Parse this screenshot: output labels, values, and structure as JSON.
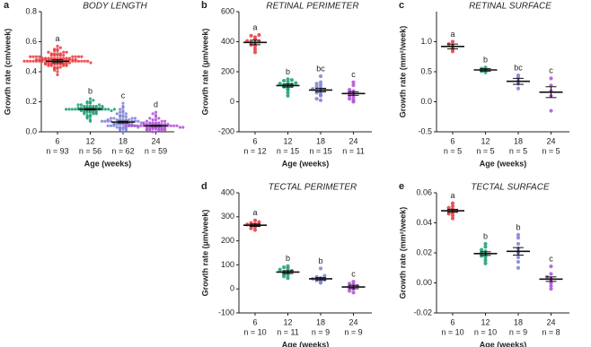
{
  "chart_data": [
    {
      "type": "dot",
      "panel_label": "a",
      "title": "BODY LENGTH",
      "ylabel": "Growth rate (cm/week)",
      "xlabel": "Age (weeks)",
      "categories": [
        "6",
        "12",
        "18",
        "24"
      ],
      "n_labels": [
        "n = 93",
        "n = 56",
        "n = 62",
        "n = 59"
      ],
      "group_letters": [
        "a",
        "b",
        "c",
        "d"
      ],
      "colors": [
        "#e8383d",
        "#1a9e6e",
        "#7b7fd4",
        "#b04fd6"
      ],
      "means": [
        0.47,
        0.15,
        0.065,
        0.04
      ],
      "sem": [
        0.01,
        0.005,
        0.006,
        0.004
      ],
      "points": [
        [
          0.38,
          0.4,
          0.41,
          0.42,
          0.42,
          0.43,
          0.43,
          0.43,
          0.44,
          0.44,
          0.44,
          0.44,
          0.45,
          0.45,
          0.45,
          0.45,
          0.45,
          0.45,
          0.45,
          0.46,
          0.46,
          0.46,
          0.46,
          0.46,
          0.46,
          0.46,
          0.46,
          0.46,
          0.47,
          0.47,
          0.47,
          0.47,
          0.47,
          0.47,
          0.47,
          0.47,
          0.47,
          0.47,
          0.47,
          0.47,
          0.47,
          0.48,
          0.48,
          0.48,
          0.48,
          0.48,
          0.48,
          0.48,
          0.48,
          0.48,
          0.48,
          0.48,
          0.48,
          0.48,
          0.49,
          0.49,
          0.49,
          0.49,
          0.49,
          0.49,
          0.49,
          0.49,
          0.49,
          0.49,
          0.5,
          0.5,
          0.5,
          0.5,
          0.5,
          0.5,
          0.5,
          0.5,
          0.51,
          0.51,
          0.51,
          0.51,
          0.51,
          0.52,
          0.52,
          0.52,
          0.52,
          0.53,
          0.53,
          0.53,
          0.54,
          0.54,
          0.55,
          0.55,
          0.56,
          0.57,
          0.45,
          0.46,
          0.48
        ],
        [
          0.07,
          0.08,
          0.09,
          0.1,
          0.1,
          0.11,
          0.11,
          0.12,
          0.12,
          0.12,
          0.13,
          0.13,
          0.13,
          0.13,
          0.14,
          0.14,
          0.14,
          0.14,
          0.14,
          0.14,
          0.15,
          0.15,
          0.15,
          0.15,
          0.15,
          0.15,
          0.15,
          0.15,
          0.16,
          0.16,
          0.16,
          0.16,
          0.16,
          0.16,
          0.16,
          0.17,
          0.17,
          0.17,
          0.17,
          0.17,
          0.18,
          0.18,
          0.18,
          0.19,
          0.19,
          0.2,
          0.2,
          0.21,
          0.22,
          0.14,
          0.15,
          0.16,
          0.13,
          0.17,
          0.15,
          0.16
        ],
        [
          0.0,
          0.01,
          0.01,
          0.02,
          0.02,
          0.02,
          0.03,
          0.03,
          0.03,
          0.03,
          0.04,
          0.04,
          0.04,
          0.04,
          0.04,
          0.05,
          0.05,
          0.05,
          0.05,
          0.05,
          0.05,
          0.06,
          0.06,
          0.06,
          0.06,
          0.06,
          0.06,
          0.07,
          0.07,
          0.07,
          0.07,
          0.07,
          0.07,
          0.08,
          0.08,
          0.08,
          0.08,
          0.08,
          0.09,
          0.09,
          0.09,
          0.09,
          0.1,
          0.1,
          0.1,
          0.11,
          0.11,
          0.12,
          0.12,
          0.13,
          0.13,
          0.14,
          0.15,
          0.16,
          0.17,
          0.19,
          0.06,
          0.05,
          0.07,
          0.04,
          0.03,
          0.08
        ],
        [
          0.0,
          0.0,
          0.01,
          0.01,
          0.01,
          0.01,
          0.02,
          0.02,
          0.02,
          0.02,
          0.02,
          0.03,
          0.03,
          0.03,
          0.03,
          0.03,
          0.03,
          0.03,
          0.04,
          0.04,
          0.04,
          0.04,
          0.04,
          0.04,
          0.04,
          0.04,
          0.04,
          0.05,
          0.05,
          0.05,
          0.05,
          0.05,
          0.05,
          0.05,
          0.06,
          0.06,
          0.06,
          0.06,
          0.07,
          0.07,
          0.07,
          0.08,
          0.08,
          0.09,
          0.09,
          0.1,
          0.11,
          0.12,
          0.13,
          0.02,
          0.03,
          0.04,
          0.05,
          0.01,
          0.06,
          0.03,
          0.04,
          0.02,
          0.05
        ]
      ],
      "ylim": [
        0,
        0.8
      ],
      "yticks": [
        {
          "value": 0,
          "label": "0.0"
        },
        0.2,
        0.4,
        0.6,
        0.8
      ]
    },
    {
      "type": "dot",
      "panel_label": "b",
      "title": "RETINAL PERIMETER",
      "ylabel": "Growth rate (µm/week)",
      "xlabel": "Age (weeks)",
      "categories": [
        "6",
        "12",
        "18",
        "24"
      ],
      "n_labels": [
        "n = 12",
        "n = 15",
        "n = 15",
        "n = 11"
      ],
      "group_letters": [
        "a",
        "b",
        "bc",
        "c"
      ],
      "colors": [
        "#e8383d",
        "#1a9e6e",
        "#7b7fd4",
        "#b04fd6"
      ],
      "means": [
        395,
        108,
        78,
        55
      ],
      "sem": [
        15,
        10,
        12,
        12
      ],
      "points": [
        [
          330,
          350,
          370,
          380,
          390,
          395,
          400,
          405,
          415,
          430,
          440,
          445
        ],
        [
          40,
          60,
          80,
          90,
          100,
          105,
          110,
          110,
          115,
          120,
          125,
          130,
          140,
          145,
          150
        ],
        [
          10,
          20,
          40,
          50,
          60,
          70,
          75,
          80,
          85,
          90,
          100,
          110,
          120,
          130,
          170
        ],
        [
          0,
          10,
          20,
          30,
          40,
          50,
          60,
          70,
          80,
          110,
          130
        ]
      ],
      "ylim": [
        -200,
        600
      ],
      "yticks": [
        -200,
        0,
        200,
        400,
        600
      ]
    },
    {
      "type": "dot",
      "panel_label": "c",
      "title": "RETINAL SURFACE",
      "ylabel": "Growth rate (mm²/week)",
      "xlabel": "Age (weeks)",
      "categories": [
        "6",
        "12",
        "18",
        "24"
      ],
      "n_labels": [
        "n = 5",
        "n = 5",
        "n = 5",
        "n = 5"
      ],
      "group_letters": [
        "a",
        "b",
        "bc",
        "c"
      ],
      "colors": [
        "#e8383d",
        "#1a9e6e",
        "#7b7fd4",
        "#b04fd6"
      ],
      "means": [
        0.92,
        0.53,
        0.34,
        0.16
      ],
      "sem": [
        0.04,
        0.02,
        0.05,
        0.09
      ],
      "points": [
        [
          0.84,
          0.88,
          0.93,
          0.96,
          1.0
        ],
        [
          0.49,
          0.51,
          0.53,
          0.55,
          0.57
        ],
        [
          0.22,
          0.3,
          0.35,
          0.4,
          0.44
        ],
        [
          -0.15,
          0.1,
          0.18,
          0.27,
          0.39
        ]
      ],
      "ylim": [
        -0.5,
        1.5
      ],
      "yticks": [
        -0.5,
        {
          "value": 0,
          "label": "0.0"
        },
        0.5,
        {
          "value": 1,
          "label": "1.0"
        }
      ]
    },
    {
      "type": "dot",
      "panel_label": "d",
      "title": "TECTAL PERIMETER",
      "ylabel": "Growth rate (µm/week)",
      "xlabel": "Age (weeks)",
      "categories": [
        "6",
        "12",
        "18",
        "24"
      ],
      "n_labels": [
        "n = 10",
        "n = 11",
        "n = 9",
        "n = 9"
      ],
      "group_letters": [
        "a",
        "b",
        "b",
        "c"
      ],
      "colors": [
        "#e8383d",
        "#1a9e6e",
        "#7b7fd4",
        "#b04fd6"
      ],
      "means": [
        265,
        70,
        42,
        8
      ],
      "sem": [
        5,
        6,
        5,
        7
      ],
      "points": [
        [
          245,
          252,
          258,
          262,
          265,
          268,
          270,
          274,
          278,
          285
        ],
        [
          45,
          52,
          58,
          62,
          68,
          70,
          75,
          80,
          85,
          90,
          95
        ],
        [
          25,
          30,
          35,
          38,
          42,
          45,
          50,
          55,
          85
        ],
        [
          -15,
          -8,
          0,
          5,
          8,
          12,
          18,
          22,
          30
        ]
      ],
      "ylim": [
        -100,
        400
      ],
      "yticks": [
        -100,
        0,
        100,
        200,
        300,
        400
      ]
    },
    {
      "type": "dot",
      "panel_label": "e",
      "title": "TECTAL SURFACE",
      "ylabel": "Growth rate (mm²/week)",
      "xlabel": "Age (weeks)",
      "categories": [
        "6",
        "12",
        "18",
        "24"
      ],
      "n_labels": [
        "n = 10",
        "n = 10",
        "n = 9",
        "n = 8"
      ],
      "group_letters": [
        "a",
        "b",
        "b",
        "c"
      ],
      "colors": [
        "#e8383d",
        "#1a9e6e",
        "#7b7fd4",
        "#b04fd6"
      ],
      "means": [
        0.048,
        0.0195,
        0.021,
        0.0025
      ],
      "sem": [
        0.001,
        0.0012,
        0.0025,
        0.0015
      ],
      "points": [
        [
          0.043,
          0.045,
          0.046,
          0.047,
          0.048,
          0.048,
          0.049,
          0.05,
          0.051,
          0.053
        ],
        [
          0.013,
          0.015,
          0.017,
          0.018,
          0.019,
          0.02,
          0.021,
          0.022,
          0.024,
          0.026
        ],
        [
          0.01,
          0.014,
          0.017,
          0.02,
          0.021,
          0.023,
          0.026,
          0.03,
          0.032
        ],
        [
          -0.004,
          -0.002,
          0.0,
          0.001,
          0.003,
          0.004,
          0.006,
          0.011
        ]
      ],
      "ylim": [
        -0.02,
        0.06
      ],
      "yticks": [
        -0.02,
        {
          "value": 0,
          "label": "0.00"
        },
        0.02,
        0.04,
        0.06
      ]
    }
  ]
}
